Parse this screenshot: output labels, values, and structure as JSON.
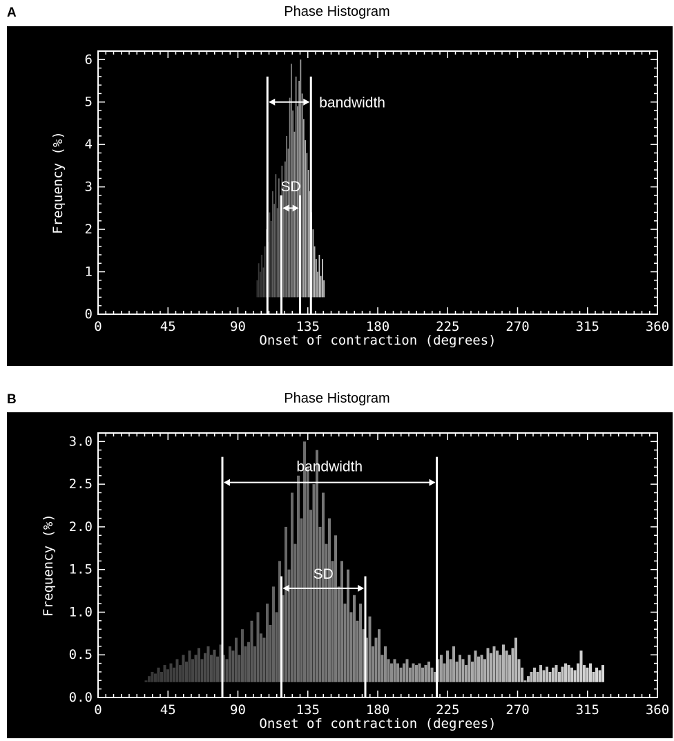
{
  "panels": [
    {
      "letter": "A",
      "title": "Phase Histogram",
      "chart_data": {
        "type": "bar",
        "title": "Phase Histogram",
        "xlabel": "Onset of contraction (degrees)",
        "ylabel": "Frequency (%)",
        "xlim": [
          0,
          360
        ],
        "ylim": [
          0,
          6.2
        ],
        "xticks": [
          "0",
          "45",
          "90",
          "135",
          "180",
          "225",
          "270",
          "315",
          "360"
        ],
        "yticks": [
          "0",
          "1",
          "2",
          "3",
          "4",
          "5",
          "6"
        ],
        "baseline": 0.4,
        "bin_width": 1,
        "x": [
          102,
          103,
          104,
          105,
          106,
          107,
          108,
          109,
          110,
          111,
          112,
          113,
          114,
          115,
          116,
          117,
          118,
          119,
          120,
          121,
          122,
          123,
          124,
          125,
          126,
          127,
          128,
          129,
          130,
          131,
          132,
          133,
          134,
          135,
          136,
          137,
          138,
          139,
          140,
          141,
          142,
          143,
          144,
          145
        ],
        "values": [
          0.8,
          1.2,
          1.0,
          1.4,
          1.1,
          1.6,
          2.0,
          1.7,
          2.4,
          2.2,
          2.9,
          2.6,
          3.3,
          2.5,
          3.2,
          2.8,
          3.5,
          3.0,
          3.6,
          4.2,
          3.9,
          5.1,
          5.9,
          4.8,
          4.3,
          5.6,
          4.9,
          5.5,
          6.0,
          5.2,
          4.6,
          4.1,
          3.8,
          3.4,
          2.9,
          2.4,
          2.0,
          1.6,
          1.3,
          1.0,
          1.4,
          0.9,
          1.3,
          0.8
        ],
        "annotations": {
          "bandwidth": {
            "label": "bandwidth",
            "x_start": 109,
            "x_end": 137,
            "y_top": 5.6,
            "arrow_y": 5.0
          },
          "sd": {
            "label": "SD",
            "x_start": 118,
            "x_end": 130,
            "y_top": 2.8,
            "arrow_y": 2.5
          }
        }
      }
    },
    {
      "letter": "B",
      "title": "Phase Histogram",
      "chart_data": {
        "type": "bar",
        "title": "Phase Histogram",
        "xlabel": "Onset of contraction (degrees)",
        "ylabel": "Frequency (%)",
        "xlim": [
          0,
          360
        ],
        "ylim": [
          0,
          3.1
        ],
        "xticks": [
          "0",
          "45",
          "90",
          "135",
          "180",
          "225",
          "270",
          "315",
          "360"
        ],
        "yticks": [
          "0.0",
          "0.5",
          "1.0",
          "1.5",
          "2.0",
          "2.5",
          "3.0"
        ],
        "baseline": 0.18,
        "bin_width": 2,
        "x": [
          30,
          32,
          34,
          36,
          38,
          40,
          42,
          44,
          46,
          48,
          50,
          52,
          54,
          56,
          58,
          60,
          62,
          64,
          66,
          68,
          70,
          72,
          74,
          76,
          78,
          80,
          82,
          84,
          86,
          88,
          90,
          92,
          94,
          96,
          98,
          100,
          102,
          104,
          106,
          108,
          110,
          112,
          114,
          116,
          118,
          120,
          122,
          124,
          126,
          128,
          130,
          132,
          134,
          136,
          138,
          140,
          142,
          144,
          146,
          148,
          150,
          152,
          154,
          156,
          158,
          160,
          162,
          164,
          166,
          168,
          170,
          172,
          174,
          176,
          178,
          180,
          182,
          184,
          186,
          188,
          190,
          192,
          194,
          196,
          198,
          200,
          202,
          204,
          206,
          208,
          210,
          212,
          214,
          216,
          218,
          220,
          222,
          224,
          226,
          228,
          230,
          232,
          234,
          236,
          238,
          240,
          242,
          244,
          246,
          248,
          250,
          252,
          254,
          256,
          258,
          260,
          262,
          264,
          266,
          268,
          270,
          272,
          274,
          276,
          278,
          280,
          282,
          284,
          286,
          288,
          290,
          292,
          294,
          296,
          298,
          300,
          302,
          304,
          306,
          308,
          310,
          312,
          314,
          316,
          318,
          320,
          322,
          324
        ],
        "values": [
          0.2,
          0.25,
          0.3,
          0.28,
          0.35,
          0.3,
          0.38,
          0.33,
          0.4,
          0.35,
          0.45,
          0.38,
          0.5,
          0.42,
          0.55,
          0.45,
          0.5,
          0.58,
          0.45,
          0.52,
          0.6,
          0.5,
          0.56,
          0.48,
          0.62,
          0.5,
          0.45,
          0.6,
          0.55,
          0.7,
          0.5,
          0.8,
          0.6,
          0.65,
          0.9,
          0.6,
          1.0,
          0.75,
          0.7,
          1.1,
          0.85,
          1.3,
          1.0,
          1.6,
          1.2,
          2.0,
          1.5,
          2.4,
          1.8,
          2.6,
          2.1,
          3.0,
          2.7,
          2.2,
          2.5,
          2.9,
          2.0,
          2.4,
          1.8,
          2.1,
          1.6,
          1.9,
          1.3,
          1.6,
          1.1,
          1.5,
          1.0,
          1.2,
          0.9,
          1.1,
          0.8,
          0.7,
          0.95,
          0.6,
          0.7,
          0.8,
          0.5,
          0.6,
          0.45,
          0.4,
          0.45,
          0.4,
          0.35,
          0.4,
          0.45,
          0.35,
          0.4,
          0.38,
          0.4,
          0.35,
          0.38,
          0.42,
          0.35,
          0.3,
          0.45,
          0.5,
          0.4,
          0.55,
          0.45,
          0.6,
          0.42,
          0.5,
          0.45,
          0.38,
          0.5,
          0.42,
          0.55,
          0.48,
          0.5,
          0.45,
          0.58,
          0.52,
          0.6,
          0.55,
          0.5,
          0.62,
          0.55,
          0.5,
          0.58,
          0.7,
          0.45,
          0.35,
          0.2,
          0.25,
          0.3,
          0.35,
          0.3,
          0.38,
          0.32,
          0.36,
          0.3,
          0.35,
          0.38,
          0.3,
          0.36,
          0.4,
          0.38,
          0.35,
          0.32,
          0.4,
          0.55,
          0.38,
          0.35,
          0.4,
          0.3,
          0.35,
          0.32,
          0.38
        ],
        "annotations": {
          "bandwidth": {
            "label": "bandwidth",
            "x_start": 80,
            "x_end": 218,
            "y_top": 2.82,
            "arrow_y": 2.52
          },
          "sd": {
            "label": "SD",
            "x_start": 118,
            "x_end": 172,
            "y_top": 1.42,
            "arrow_y": 1.28
          }
        }
      }
    }
  ]
}
